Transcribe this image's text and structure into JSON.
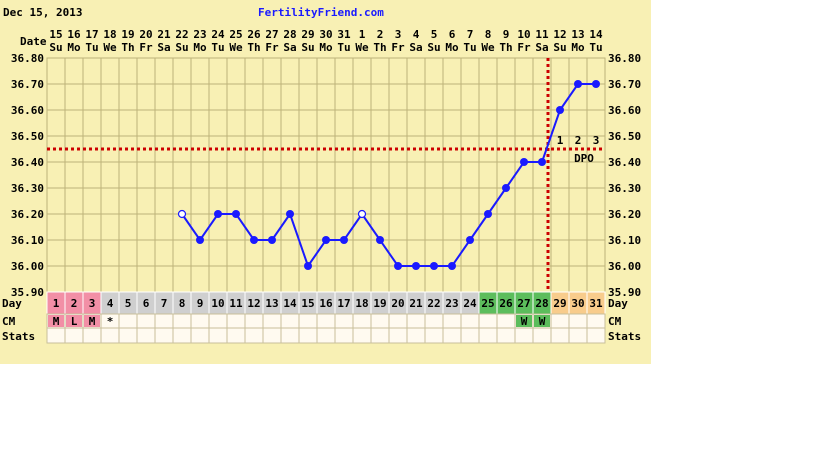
{
  "header": {
    "date": "Dec 15, 2013",
    "site": "FertilityFriend.com"
  },
  "row_labels": {
    "date": "Date",
    "day": "Day",
    "cm": "CM",
    "stats": "Stats",
    "dpo": "DPO"
  },
  "colors": {
    "background": "#f8f0b4",
    "grid": "#bdb27a",
    "line": "#1a1aff",
    "coverline": "#cc0000",
    "menstruation": "#f28fa6",
    "fertile": "#5cbd5c",
    "post_ovulation": "#f8cc8c",
    "day_cell": "#cfcfcf"
  },
  "chart_data": {
    "type": "line",
    "title": "",
    "y_ticks": [
      "36.80",
      "36.70",
      "36.60",
      "36.50",
      "36.40",
      "36.30",
      "36.20",
      "36.10",
      "36.00",
      "35.90"
    ],
    "ylim": [
      35.9,
      36.8
    ],
    "coverline": 36.45,
    "ovulation_day": 28,
    "dates": [
      "15",
      "16",
      "17",
      "18",
      "19",
      "20",
      "21",
      "22",
      "23",
      "24",
      "25",
      "26",
      "27",
      "28",
      "29",
      "30",
      "31",
      "1",
      "2",
      "3",
      "4",
      "5",
      "6",
      "7",
      "8",
      "9",
      "10",
      "11",
      "12",
      "13",
      "14"
    ],
    "weekdays": [
      "Su",
      "Mo",
      "Tu",
      "We",
      "Th",
      "Fr",
      "Sa",
      "Su",
      "Mo",
      "Tu",
      "We",
      "Th",
      "Fr",
      "Sa",
      "Su",
      "Mo",
      "Tu",
      "We",
      "Th",
      "Fr",
      "Sa",
      "Su",
      "Mo",
      "Tu",
      "We",
      "Th",
      "Fr",
      "Sa",
      "Su",
      "Mo",
      "Tu"
    ],
    "days": [
      "1",
      "2",
      "3",
      "4",
      "5",
      "6",
      "7",
      "8",
      "9",
      "10",
      "11",
      "12",
      "13",
      "14",
      "15",
      "16",
      "17",
      "18",
      "19",
      "20",
      "21",
      "22",
      "23",
      "24",
      "25",
      "26",
      "27",
      "28",
      "29",
      "30",
      "31"
    ],
    "temperatures": [
      {
        "day": 8,
        "temp": 36.2,
        "open": true
      },
      {
        "day": 9,
        "temp": 36.1
      },
      {
        "day": 10,
        "temp": 36.2
      },
      {
        "day": 11,
        "temp": 36.2
      },
      {
        "day": 12,
        "temp": 36.1
      },
      {
        "day": 13,
        "temp": 36.1
      },
      {
        "day": 14,
        "temp": 36.2
      },
      {
        "day": 15,
        "temp": 36.0
      },
      {
        "day": 16,
        "temp": 36.1
      },
      {
        "day": 17,
        "temp": 36.1
      },
      {
        "day": 18,
        "temp": 36.2,
        "open": true
      },
      {
        "day": 19,
        "temp": 36.1
      },
      {
        "day": 20,
        "temp": 36.0
      },
      {
        "day": 21,
        "temp": 36.0
      },
      {
        "day": 22,
        "temp": 36.0
      },
      {
        "day": 23,
        "temp": 36.0
      },
      {
        "day": 24,
        "temp": 36.1
      },
      {
        "day": 25,
        "temp": 36.2
      },
      {
        "day": 26,
        "temp": 36.3
      },
      {
        "day": 27,
        "temp": 36.4
      },
      {
        "day": 28,
        "temp": 36.4
      },
      {
        "day": 29,
        "temp": 36.6
      },
      {
        "day": 30,
        "temp": 36.7
      },
      {
        "day": 31,
        "temp": 36.7
      }
    ],
    "day_highlights": {
      "menstruation": [
        1,
        2,
        3
      ],
      "fertile": [
        25,
        26,
        27,
        28
      ],
      "post_ovulation": [
        29,
        30,
        31
      ]
    },
    "dpo": [
      {
        "day": 29,
        "label": "1"
      },
      {
        "day": 30,
        "label": "2"
      },
      {
        "day": 31,
        "label": "3"
      }
    ],
    "cm": [
      {
        "day": 1,
        "label": "M",
        "color": "#f28fa6"
      },
      {
        "day": 2,
        "label": "L",
        "color": "#f28fa6"
      },
      {
        "day": 3,
        "label": "M",
        "color": "#f28fa6"
      },
      {
        "day": 4,
        "label": "*",
        "color": ""
      },
      {
        "day": 27,
        "label": "W",
        "color": "#5cbd5c"
      },
      {
        "day": 28,
        "label": "W",
        "color": "#5cbd5c"
      }
    ]
  }
}
